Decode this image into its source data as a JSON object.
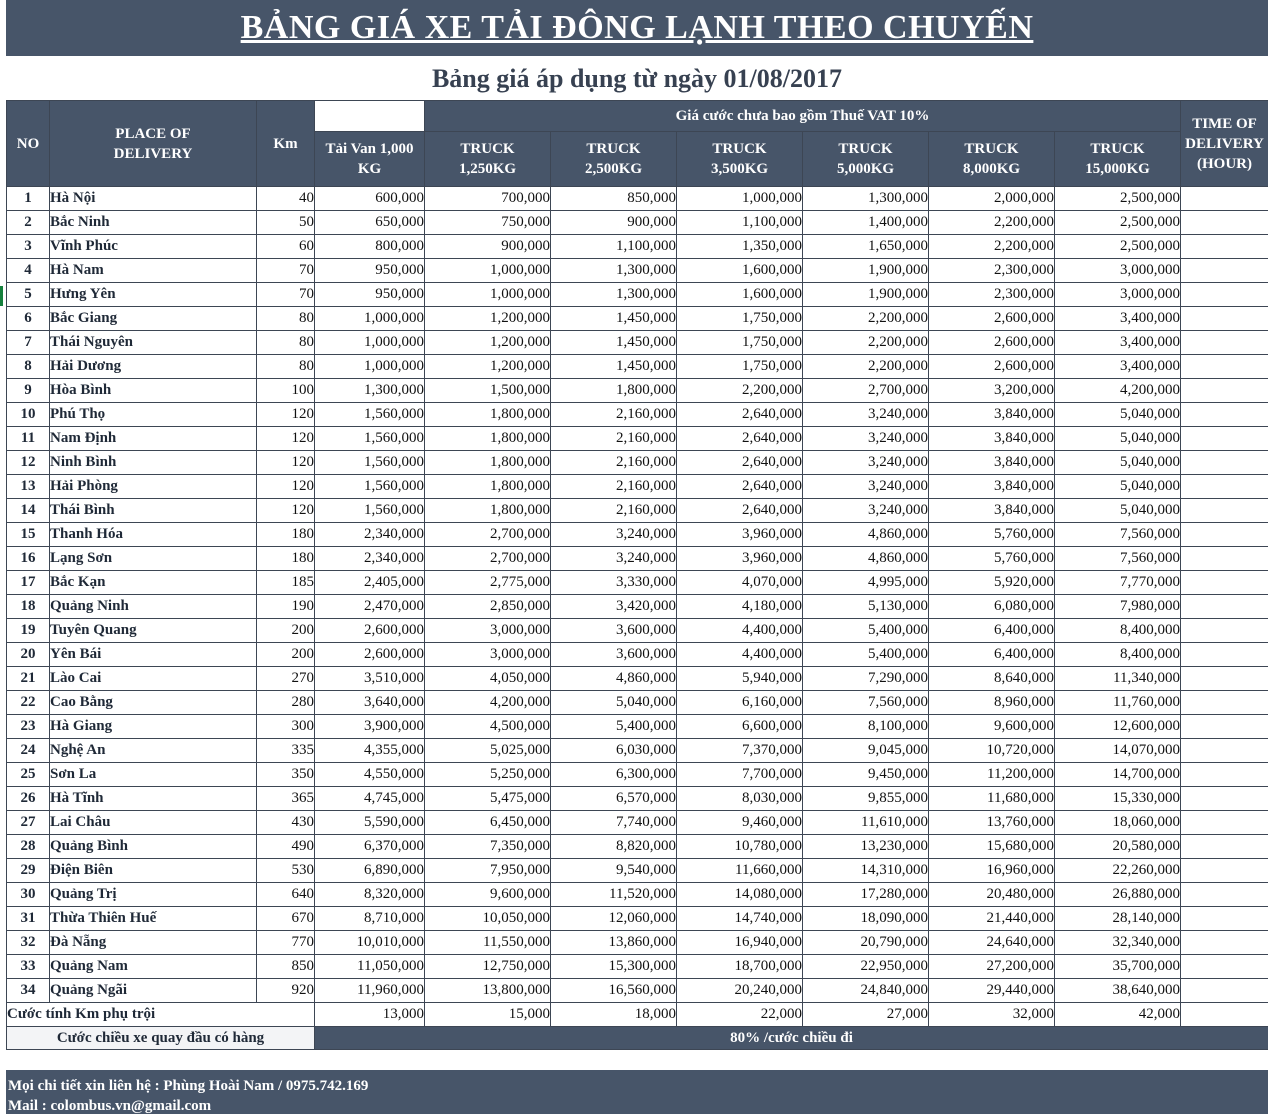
{
  "title": "BẢNG GIÁ XE TẢI ĐÔNG LẠNH THEO CHUYẾN",
  "subtitle": "Bảng giá áp dụng từ ngày 01/08/2017",
  "header": {
    "no": "NO",
    "place": "PLACE OF DELIVERY",
    "km": "Km",
    "price_group": "Giá cước chưa bao gồm Thuế VAT 10%",
    "time": "TIME OF DELIVERY (HOUR)",
    "columns": [
      "Tải Van 1,000 KG",
      "TRUCK 1,250KG",
      "TRUCK 2,500KG",
      "TRUCK 3,500KG",
      "TRUCK 5,000KG",
      "TRUCK 8,000KG",
      "TRUCK 15,000KG"
    ]
  },
  "rows": [
    {
      "no": "1",
      "place": "Hà Nội",
      "km": "40",
      "p": [
        "600,000",
        "700,000",
        "850,000",
        "1,000,000",
        "1,300,000",
        "2,000,000",
        "2,500,000"
      ]
    },
    {
      "no": "2",
      "place": "Bắc Ninh",
      "km": "50",
      "p": [
        "650,000",
        "750,000",
        "900,000",
        "1,100,000",
        "1,400,000",
        "2,200,000",
        "2,500,000"
      ]
    },
    {
      "no": "3",
      "place": "Vĩnh Phúc",
      "km": "60",
      "p": [
        "800,000",
        "900,000",
        "1,100,000",
        "1,350,000",
        "1,650,000",
        "2,200,000",
        "2,500,000"
      ]
    },
    {
      "no": "4",
      "place": "Hà Nam",
      "km": "70",
      "p": [
        "950,000",
        "1,000,000",
        "1,300,000",
        "1,600,000",
        "1,900,000",
        "2,300,000",
        "3,000,000"
      ]
    },
    {
      "no": "5",
      "place": "Hưng Yên",
      "km": "70",
      "p": [
        "950,000",
        "1,000,000",
        "1,300,000",
        "1,600,000",
        "1,900,000",
        "2,300,000",
        "3,000,000"
      ]
    },
    {
      "no": "6",
      "place": "Bắc Giang",
      "km": "80",
      "p": [
        "1,000,000",
        "1,200,000",
        "1,450,000",
        "1,750,000",
        "2,200,000",
        "2,600,000",
        "3,400,000"
      ]
    },
    {
      "no": "7",
      "place": "Thái Nguyên",
      "km": "80",
      "p": [
        "1,000,000",
        "1,200,000",
        "1,450,000",
        "1,750,000",
        "2,200,000",
        "2,600,000",
        "3,400,000"
      ]
    },
    {
      "no": "8",
      "place": "Hải Dương",
      "km": "80",
      "p": [
        "1,000,000",
        "1,200,000",
        "1,450,000",
        "1,750,000",
        "2,200,000",
        "2,600,000",
        "3,400,000"
      ]
    },
    {
      "no": "9",
      "place": "Hòa Bình",
      "km": "100",
      "p": [
        "1,300,000",
        "1,500,000",
        "1,800,000",
        "2,200,000",
        "2,700,000",
        "3,200,000",
        "4,200,000"
      ]
    },
    {
      "no": "10",
      "place": "Phú Thọ",
      "km": "120",
      "p": [
        "1,560,000",
        "1,800,000",
        "2,160,000",
        "2,640,000",
        "3,240,000",
        "3,840,000",
        "5,040,000"
      ]
    },
    {
      "no": "11",
      "place": "Nam Định",
      "km": "120",
      "p": [
        "1,560,000",
        "1,800,000",
        "2,160,000",
        "2,640,000",
        "3,240,000",
        "3,840,000",
        "5,040,000"
      ]
    },
    {
      "no": "12",
      "place": "Ninh Bình",
      "km": "120",
      "p": [
        "1,560,000",
        "1,800,000",
        "2,160,000",
        "2,640,000",
        "3,240,000",
        "3,840,000",
        "5,040,000"
      ]
    },
    {
      "no": "13",
      "place": "Hải Phòng",
      "km": "120",
      "p": [
        "1,560,000",
        "1,800,000",
        "2,160,000",
        "2,640,000",
        "3,240,000",
        "3,840,000",
        "5,040,000"
      ]
    },
    {
      "no": "14",
      "place": "Thái Bình",
      "km": "120",
      "p": [
        "1,560,000",
        "1,800,000",
        "2,160,000",
        "2,640,000",
        "3,240,000",
        "3,840,000",
        "5,040,000"
      ]
    },
    {
      "no": "15",
      "place": "Thanh Hóa",
      "km": "180",
      "p": [
        "2,340,000",
        "2,700,000",
        "3,240,000",
        "3,960,000",
        "4,860,000",
        "5,760,000",
        "7,560,000"
      ]
    },
    {
      "no": "16",
      "place": "Lạng Sơn",
      "km": "180",
      "p": [
        "2,340,000",
        "2,700,000",
        "3,240,000",
        "3,960,000",
        "4,860,000",
        "5,760,000",
        "7,560,000"
      ]
    },
    {
      "no": "17",
      "place": "Bắc Kạn",
      "km": "185",
      "p": [
        "2,405,000",
        "2,775,000",
        "3,330,000",
        "4,070,000",
        "4,995,000",
        "5,920,000",
        "7,770,000"
      ]
    },
    {
      "no": "18",
      "place": "Quảng Ninh",
      "km": "190",
      "p": [
        "2,470,000",
        "2,850,000",
        "3,420,000",
        "4,180,000",
        "5,130,000",
        "6,080,000",
        "7,980,000"
      ]
    },
    {
      "no": "19",
      "place": "Tuyên Quang",
      "km": "200",
      "p": [
        "2,600,000",
        "3,000,000",
        "3,600,000",
        "4,400,000",
        "5,400,000",
        "6,400,000",
        "8,400,000"
      ]
    },
    {
      "no": "20",
      "place": "Yên Bái",
      "km": "200",
      "p": [
        "2,600,000",
        "3,000,000",
        "3,600,000",
        "4,400,000",
        "5,400,000",
        "6,400,000",
        "8,400,000"
      ]
    },
    {
      "no": "21",
      "place": "Lào Cai",
      "km": "270",
      "p": [
        "3,510,000",
        "4,050,000",
        "4,860,000",
        "5,940,000",
        "7,290,000",
        "8,640,000",
        "11,340,000"
      ]
    },
    {
      "no": "22",
      "place": "Cao Bằng",
      "km": "280",
      "p": [
        "3,640,000",
        "4,200,000",
        "5,040,000",
        "6,160,000",
        "7,560,000",
        "8,960,000",
        "11,760,000"
      ]
    },
    {
      "no": "23",
      "place": "Hà Giang",
      "km": "300",
      "p": [
        "3,900,000",
        "4,500,000",
        "5,400,000",
        "6,600,000",
        "8,100,000",
        "9,600,000",
        "12,600,000"
      ]
    },
    {
      "no": "24",
      "place": "Nghệ An",
      "km": "335",
      "p": [
        "4,355,000",
        "5,025,000",
        "6,030,000",
        "7,370,000",
        "9,045,000",
        "10,720,000",
        "14,070,000"
      ]
    },
    {
      "no": "25",
      "place": "Sơn La",
      "km": "350",
      "p": [
        "4,550,000",
        "5,250,000",
        "6,300,000",
        "7,700,000",
        "9,450,000",
        "11,200,000",
        "14,700,000"
      ]
    },
    {
      "no": "26",
      "place": "Hà Tĩnh",
      "km": "365",
      "p": [
        "4,745,000",
        "5,475,000",
        "6,570,000",
        "8,030,000",
        "9,855,000",
        "11,680,000",
        "15,330,000"
      ]
    },
    {
      "no": "27",
      "place": "Lai Châu",
      "km": "430",
      "p": [
        "5,590,000",
        "6,450,000",
        "7,740,000",
        "9,460,000",
        "11,610,000",
        "13,760,000",
        "18,060,000"
      ]
    },
    {
      "no": "28",
      "place": "Quảng Bình",
      "km": "490",
      "p": [
        "6,370,000",
        "7,350,000",
        "8,820,000",
        "10,780,000",
        "13,230,000",
        "15,680,000",
        "20,580,000"
      ]
    },
    {
      "no": "29",
      "place": "Điện Biên",
      "km": "530",
      "p": [
        "6,890,000",
        "7,950,000",
        "9,540,000",
        "11,660,000",
        "14,310,000",
        "16,960,000",
        "22,260,000"
      ]
    },
    {
      "no": "30",
      "place": "Quảng Trị",
      "km": "640",
      "p": [
        "8,320,000",
        "9,600,000",
        "11,520,000",
        "14,080,000",
        "17,280,000",
        "20,480,000",
        "26,880,000"
      ]
    },
    {
      "no": "31",
      "place": "Thừa Thiên Huế",
      "km": "670",
      "p": [
        "8,710,000",
        "10,050,000",
        "12,060,000",
        "14,740,000",
        "18,090,000",
        "21,440,000",
        "28,140,000"
      ]
    },
    {
      "no": "32",
      "place": "Đà Nẵng",
      "km": "770",
      "p": [
        "10,010,000",
        "11,550,000",
        "13,860,000",
        "16,940,000",
        "20,790,000",
        "24,640,000",
        "32,340,000"
      ]
    },
    {
      "no": "33",
      "place": "Quảng Nam",
      "km": "850",
      "p": [
        "11,050,000",
        "12,750,000",
        "15,300,000",
        "18,700,000",
        "22,950,000",
        "27,200,000",
        "35,700,000"
      ]
    },
    {
      "no": "34",
      "place": "Quảng Ngãi",
      "km": "920",
      "p": [
        "11,960,000",
        "13,800,000",
        "16,560,000",
        "20,240,000",
        "24,840,000",
        "29,440,000",
        "38,640,000"
      ]
    }
  ],
  "extra_km": {
    "label": "Cước tính Km phụ trội",
    "p": [
      "13,000",
      "15,000",
      "18,000",
      "22,000",
      "27,000",
      "32,000",
      "42,000"
    ]
  },
  "return_trip": {
    "label": "Cước chiều xe quay đầu có hàng",
    "value": "80% /cước chiều đi"
  },
  "contact": {
    "line1": "Mọi chi tiết xin liên hệ : Phùng Hoài Nam / 0975.742.169",
    "line2": "Mail  : colombus.vn@gmail.com"
  }
}
